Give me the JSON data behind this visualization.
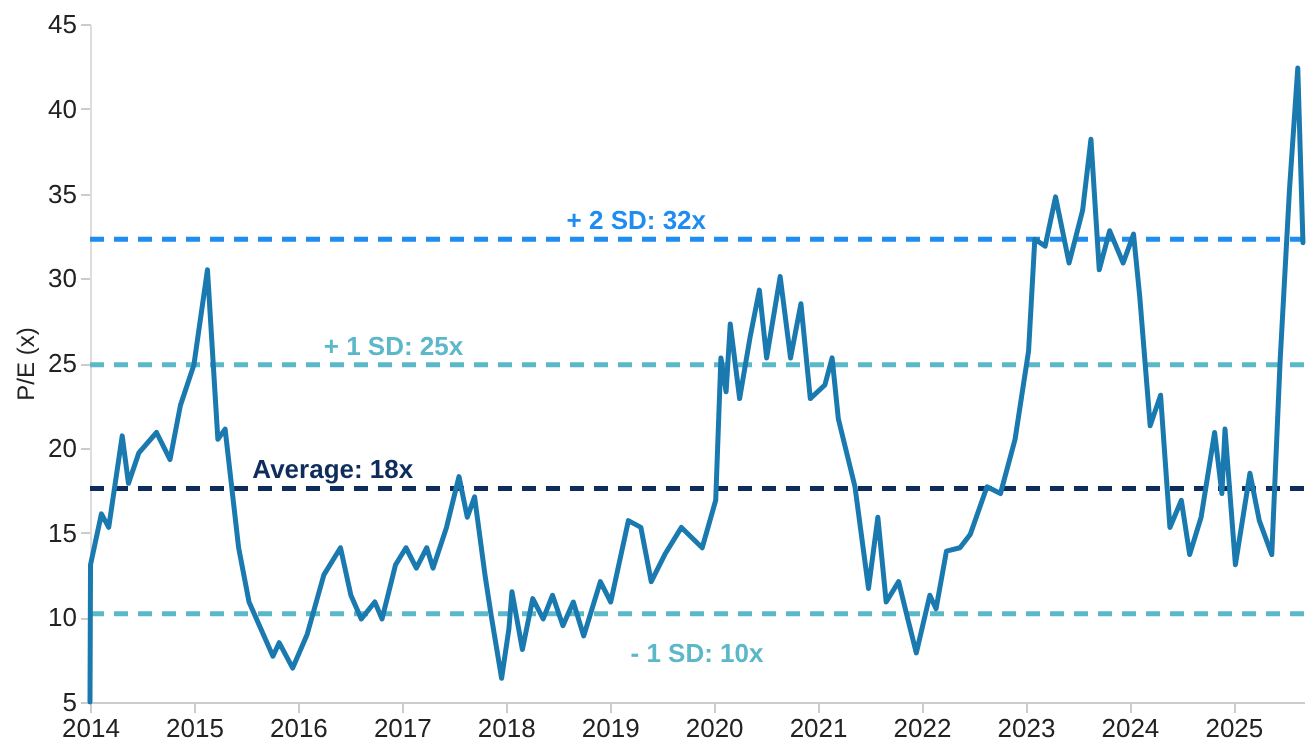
{
  "chart_data": {
    "type": "line",
    "ylabel": "P/E (x)",
    "x": [
      2014.0,
      2014.005,
      2014.11,
      2014.18,
      2014.31,
      2014.37,
      2014.47,
      2014.64,
      2014.77,
      2014.87,
      2015.0,
      2015.13,
      2015.23,
      2015.3,
      2015.43,
      2015.53,
      2015.76,
      2015.82,
      2015.95,
      2016.09,
      2016.25,
      2016.41,
      2016.51,
      2016.61,
      2016.74,
      2016.81,
      2016.94,
      2017.04,
      2017.14,
      2017.24,
      2017.3,
      2017.43,
      2017.55,
      2017.63,
      2017.7,
      2017.8,
      2017.86,
      2017.96,
      2018.03,
      2018.06,
      2018.16,
      2018.26,
      2018.36,
      2018.45,
      2018.55,
      2018.65,
      2018.75,
      2018.91,
      2019.01,
      2019.18,
      2019.3,
      2019.4,
      2019.53,
      2019.69,
      2019.89,
      2020.02,
      2020.07,
      2020.12,
      2020.16,
      2020.25,
      2020.35,
      2020.44,
      2020.51,
      2020.64,
      2020.74,
      2020.84,
      2020.93,
      2021.07,
      2021.14,
      2021.2,
      2021.36,
      2021.49,
      2021.58,
      2021.66,
      2021.78,
      2021.86,
      2021.95,
      2022.08,
      2022.14,
      2022.24,
      2022.37,
      2022.47,
      2022.63,
      2022.76,
      2022.9,
      2023.03,
      2023.09,
      2023.19,
      2023.29,
      2023.42,
      2023.55,
      2023.63,
      2023.71,
      2023.81,
      2023.94,
      2024.04,
      2024.1,
      2024.2,
      2024.3,
      2024.39,
      2024.5,
      2024.58,
      2024.69,
      2024.82,
      2024.89,
      2024.92,
      2025.02,
      2025.16,
      2025.25,
      2025.37,
      2025.45,
      2025.54,
      2025.62,
      2025.67
    ],
    "series": [
      {
        "color": "#1a7ab0",
        "values": [
          5,
          13.1,
          16.1,
          15.3,
          20.7,
          17.9,
          19.7,
          20.9,
          19.3,
          22.5,
          24.9,
          30.5,
          20.5,
          21.1,
          14.1,
          10.9,
          7.7,
          8.5,
          7.0,
          9.0,
          12.5,
          14.1,
          11.3,
          9.9,
          10.9,
          9.9,
          13.1,
          14.1,
          12.9,
          14.1,
          12.9,
          15.3,
          18.3,
          15.9,
          17.1,
          12.5,
          10.1,
          6.4,
          9.3,
          11.5,
          8.1,
          11.1,
          9.9,
          11.3,
          9.5,
          10.9,
          8.9,
          12.1,
          10.9,
          15.7,
          15.3,
          12.1,
          13.7,
          15.3,
          14.1,
          16.9,
          25.3,
          23.3,
          27.3,
          22.9,
          26.5,
          29.3,
          25.3,
          30.1,
          25.3,
          28.5,
          22.9,
          23.7,
          25.3,
          21.7,
          17.7,
          11.7,
          15.9,
          10.9,
          12.1,
          10.1,
          7.9,
          11.3,
          10.5,
          13.9,
          14.1,
          14.9,
          17.7,
          17.3,
          20.5,
          25.7,
          32.3,
          31.9,
          34.8,
          30.9,
          34.0,
          38.2,
          30.5,
          32.8,
          30.9,
          32.6,
          28.9,
          21.3,
          23.1,
          15.3,
          16.9,
          13.7,
          15.9,
          20.9,
          17.3,
          21.1,
          13.1,
          18.5,
          15.7,
          13.7,
          25.1,
          35.2,
          42.4,
          32.1
        ]
      }
    ],
    "xlim": [
      2014,
      2025.68
    ],
    "xticks": [
      2014,
      2015,
      2016,
      2017,
      2018,
      2019,
      2020,
      2021,
      2022,
      2023,
      2024,
      2025
    ],
    "ylim": [
      5,
      45
    ],
    "yticks": [
      5,
      10,
      15,
      20,
      25,
      30,
      35,
      40,
      45
    ],
    "grid": false,
    "marker": "none",
    "line_style": "solid",
    "ref_lines": [
      {
        "axis": "y",
        "value": 32.3,
        "label": "+ 2 SD: 32x",
        "color": "#1e8cf0",
        "line_style": "dashed"
      },
      {
        "axis": "y",
        "value": 24.9,
        "label": "+ 1 SD: 25x",
        "color": "#5bb8c8",
        "line_style": "dashed"
      },
      {
        "axis": "y",
        "value": 17.6,
        "label": "Average: 18x",
        "color": "#0f2d5c",
        "line_style": "dashed"
      },
      {
        "axis": "y",
        "value": 10.2,
        "label": "- 1 SD: 10x",
        "color": "#5bb8c8",
        "line_style": "dashed"
      }
    ]
  }
}
